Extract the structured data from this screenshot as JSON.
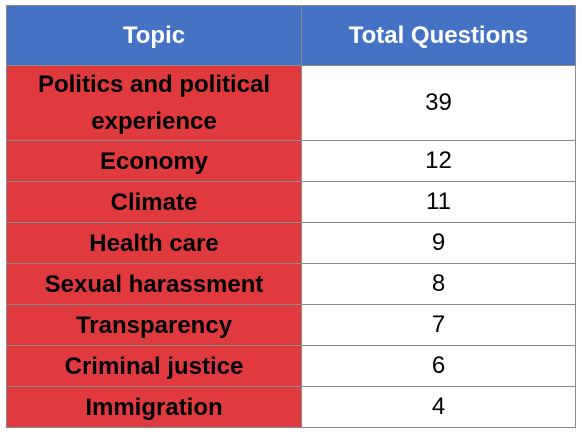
{
  "table": {
    "headers": {
      "topic": "Topic",
      "total": "Total Questions"
    },
    "rows": [
      {
        "topic": "Politics and political experience",
        "total": "39"
      },
      {
        "topic": "Economy",
        "total": "12"
      },
      {
        "topic": "Climate",
        "total": "11"
      },
      {
        "topic": "Health care",
        "total": "9"
      },
      {
        "topic": "Sexual harassment",
        "total": "8"
      },
      {
        "topic": "Transparency",
        "total": "7"
      },
      {
        "topic": "Criminal justice",
        "total": "6"
      },
      {
        "topic": "Immigration",
        "total": "4"
      }
    ]
  },
  "colors": {
    "header_background": "#4472c4",
    "topic_background": "#e03a3e",
    "value_background": "#ffffff",
    "border": "#8a8a8a"
  }
}
